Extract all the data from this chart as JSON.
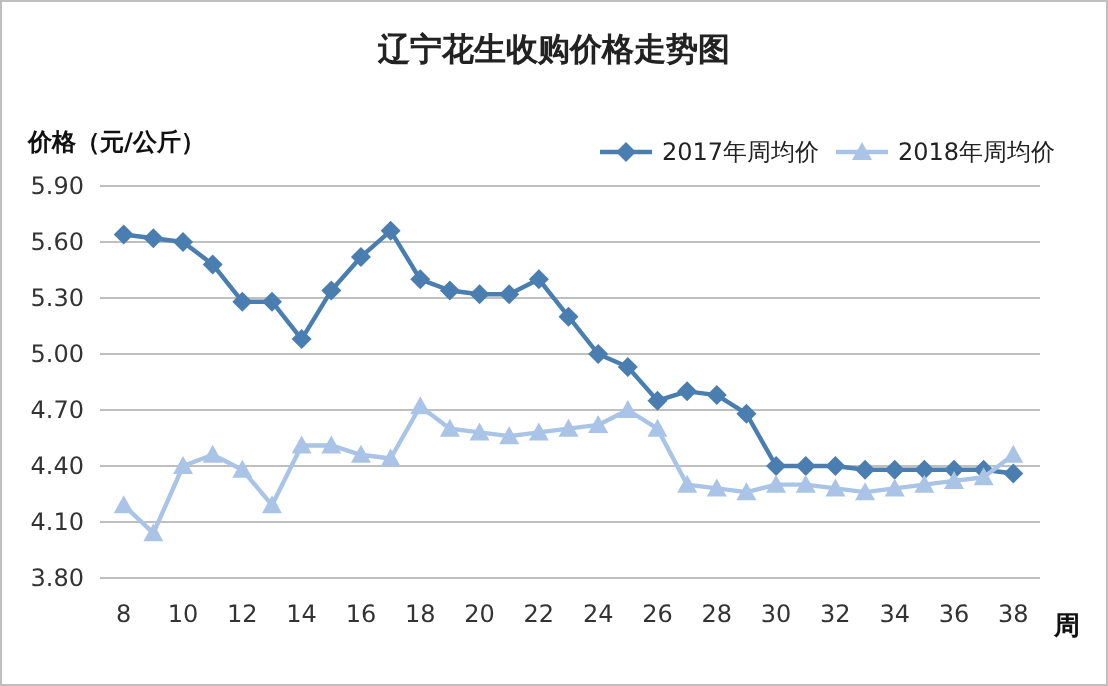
{
  "chart_data": {
    "type": "line",
    "title": "辽宁花生收购价格走势图",
    "ylabel": "价格（元/公斤）",
    "xlabel": "周",
    "x": [
      8,
      9,
      10,
      11,
      12,
      13,
      14,
      15,
      16,
      17,
      18,
      19,
      20,
      21,
      22,
      23,
      24,
      25,
      26,
      27,
      28,
      29,
      30,
      31,
      32,
      33,
      34,
      35,
      36,
      37,
      38
    ],
    "series": [
      {
        "name": "2017年周均价",
        "color": "#4a7eb0",
        "marker": "diamond",
        "values": [
          5.64,
          5.62,
          5.6,
          5.48,
          5.28,
          5.28,
          5.08,
          5.34,
          5.52,
          5.66,
          5.4,
          5.34,
          5.32,
          5.32,
          5.4,
          5.2,
          5.0,
          4.93,
          4.75,
          4.8,
          4.78,
          4.68,
          4.4,
          4.4,
          4.4,
          4.38,
          4.38,
          4.38,
          4.38,
          4.38,
          4.36
        ]
      },
      {
        "name": "2018年周均价",
        "color": "#a9c4e6",
        "marker": "triangle",
        "values": [
          4.19,
          4.04,
          4.4,
          4.46,
          4.38,
          4.19,
          4.51,
          4.51,
          4.46,
          4.44,
          4.72,
          4.6,
          4.58,
          4.56,
          4.58,
          4.6,
          4.62,
          4.7,
          4.6,
          4.3,
          4.28,
          4.26,
          4.3,
          4.3,
          4.28,
          4.26,
          4.28,
          4.3,
          4.32,
          4.34,
          4.46
        ]
      }
    ],
    "xlim": [
      7.2,
      38.9
    ],
    "xticks": [
      8,
      10,
      12,
      14,
      16,
      18,
      20,
      22,
      24,
      26,
      28,
      30,
      32,
      34,
      36,
      38
    ],
    "ylim": [
      3.8,
      5.9
    ],
    "yticks": [
      {
        "value": 3.8,
        "label": "3.80"
      },
      {
        "value": 4.1,
        "label": "4.10"
      },
      {
        "value": 4.4,
        "label": "4.40"
      },
      {
        "value": 4.7,
        "label": "4.70"
      },
      {
        "value": 5.0,
        "label": "5.00"
      },
      {
        "value": 5.3,
        "label": "5.30"
      },
      {
        "value": 5.6,
        "label": "5.60"
      },
      {
        "value": 5.9,
        "label": "5.90"
      }
    ],
    "grid": "y",
    "legend": "top right"
  }
}
